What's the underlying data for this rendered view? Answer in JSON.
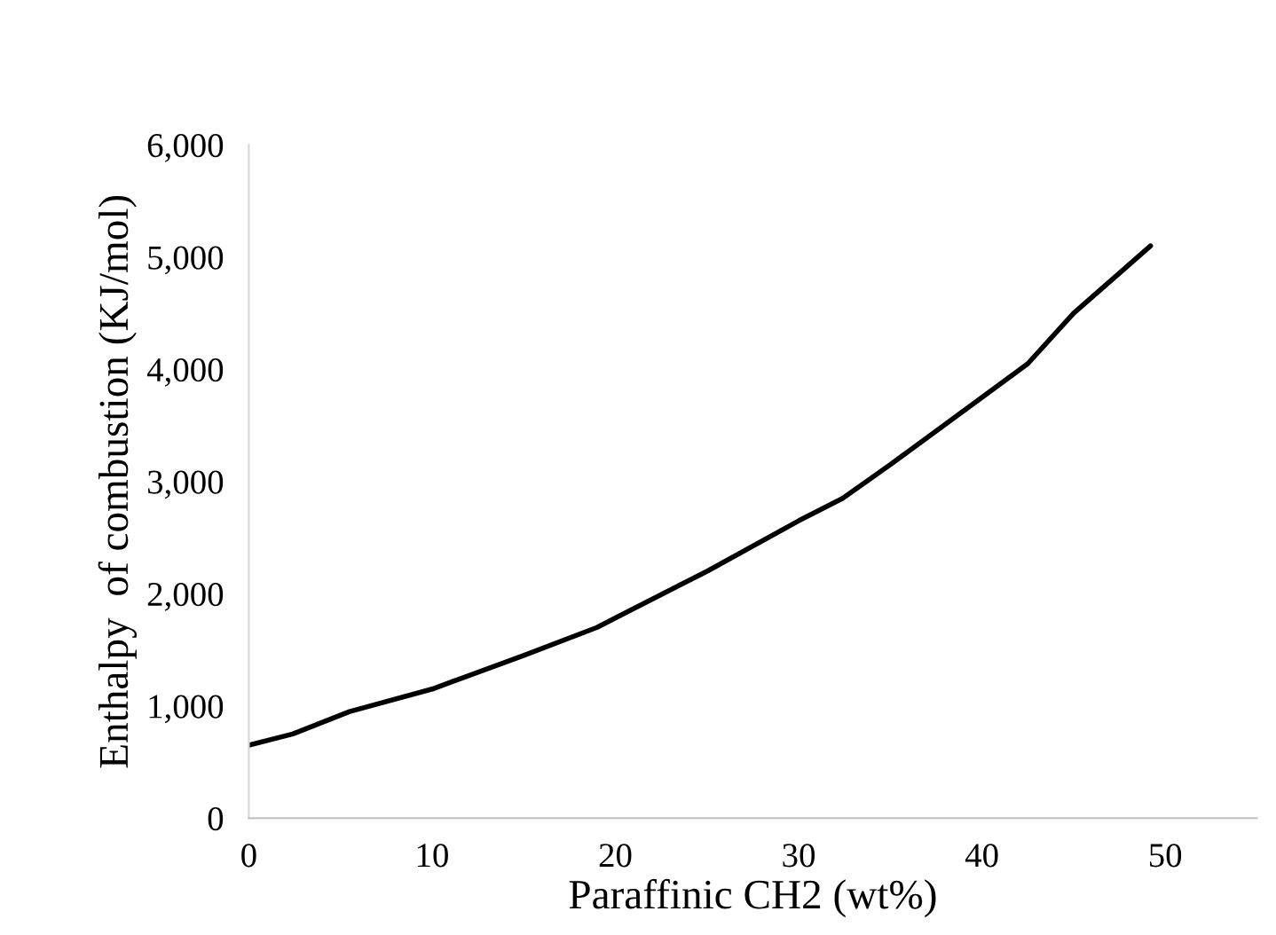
{
  "chart_data": {
    "type": "line",
    "xlabel": "Paraffinic CH2 (wt%)",
    "ylabel": "Enthalpy  of combustion (KJ/mol)",
    "series": [
      {
        "color": "#000000",
        "x": [
          0,
          2.4,
          5.5,
          10,
          15,
          19,
          20.2,
          25,
          30,
          32.4,
          35,
          40,
          42.5,
          45,
          49.2
        ],
        "values": [
          650,
          750,
          950,
          1150,
          1450,
          1700,
          1800,
          2200,
          2650,
          2850,
          3150,
          3750,
          4050,
          4500,
          5100
        ]
      }
    ],
    "xlim": [
      0,
      55
    ],
    "xticks": [
      0,
      10,
      20,
      30,
      40,
      50
    ],
    "ylim": [
      0,
      6000
    ],
    "yticks": [
      {
        "value": 0,
        "label": "0"
      },
      {
        "value": 1000,
        "label": "1,000"
      },
      {
        "value": 2000,
        "label": "2,000"
      },
      {
        "value": 3000,
        "label": "3,000"
      },
      {
        "value": 4000,
        "label": "4,000"
      },
      {
        "value": 5000,
        "label": "5,000"
      },
      {
        "value": 6000,
        "label": "6,000"
      }
    ],
    "grid": false,
    "marker": "none",
    "line_style": "solid"
  }
}
